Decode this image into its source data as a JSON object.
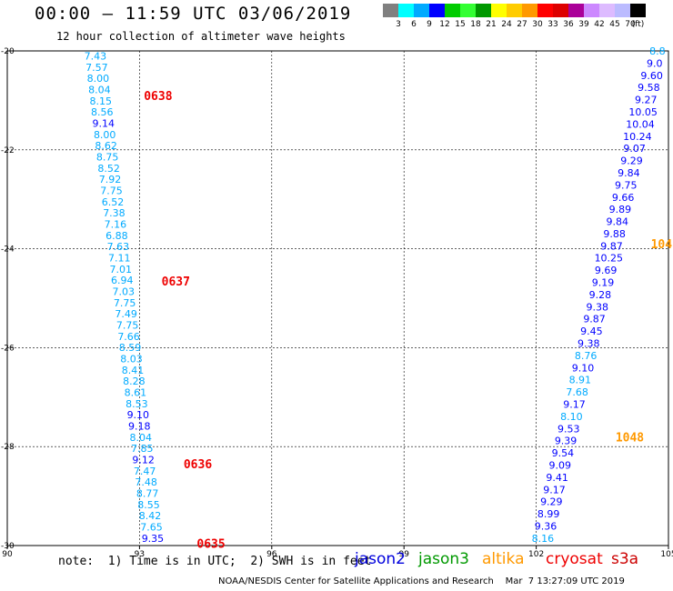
{
  "header": {
    "title": "00:00 – 11:59 UTC 03/06/2019",
    "subtitle": "12 hour collection of altimeter wave heights"
  },
  "legend": {
    "colors": [
      "#808080",
      "#00ffff",
      "#00aaff",
      "#0000ff",
      "#00cc00",
      "#33ff33",
      "#009900",
      "#ffff00",
      "#ffcc00",
      "#ff9900",
      "#ff0000",
      "#dd0000",
      "#aa0099",
      "#cc88ff",
      "#ddbbff",
      "#bbbbff",
      "#000000"
    ],
    "labels": [
      "3",
      "6",
      "9",
      "12",
      "15",
      "18",
      "21",
      "24",
      "27",
      "30",
      "33",
      "36",
      "39",
      "42",
      "45",
      "70",
      "(ft)"
    ]
  },
  "footer": {
    "note": "note:  1) Time is in UTC;  2) SWH is in feet",
    "satellites": [
      {
        "name": "jason2",
        "color": "#0000dd"
      },
      {
        "name": "jason3",
        "color": "#009900"
      },
      {
        "name": "altika",
        "color": "#ff9900"
      },
      {
        "name": "cryosat",
        "color": "#ee0000"
      },
      {
        "name": "s3a",
        "color": "#cc0000"
      }
    ],
    "credit": "NOAA/NESDIS Center for Satellite Applications and Research    Mar  7 13:27:09 UTC 2019"
  },
  "chart_data": {
    "type": "scatter",
    "title": "00:00 – 11:59 UTC 03/06/2019",
    "subtitle": "12 hour collection of altimeter wave heights",
    "xlim": [
      90,
      105
    ],
    "ylim": [
      -30,
      -20
    ],
    "x_ticks": [
      "90",
      "93",
      "96",
      "99",
      "102",
      "105"
    ],
    "y_ticks": [
      "-20",
      "-22",
      "-24",
      "-26",
      "-28",
      "-30"
    ],
    "grid": true,
    "series": [
      {
        "name": "track-1",
        "x_start": 92.0,
        "x_end": 93.3,
        "y_start": -20.1,
        "y_end": -29.85,
        "values": [
          "7.43",
          "7.57",
          "8.00",
          "8.04",
          "8.15",
          "8.56",
          "9.14",
          "8.00",
          "8.62",
          "8.75",
          "8.52",
          "7.92",
          "7.75",
          "6.52",
          "7.38",
          "7.16",
          "6.88",
          "7.63",
          "7.11",
          "7.01",
          "6.94",
          "7.03",
          "7.75",
          "7.49",
          "7.75",
          "7.66",
          "8.59",
          "8.03",
          "8.41",
          "8.28",
          "8.61",
          "8.53",
          "9.10",
          "9.18",
          "8.04",
          "7.85",
          "9.12",
          "7.47",
          "7.48",
          "8.77",
          "8.55",
          "8.42",
          "7.65",
          "9.35"
        ],
        "colors": [
          "#00aaff",
          "#00aaff",
          "#00aaff",
          "#00aaff",
          "#00aaff",
          "#00aaff",
          "#0000ff",
          "#00aaff",
          "#00aaff",
          "#00aaff",
          "#00aaff",
          "#00aaff",
          "#00aaff",
          "#00aaff",
          "#00aaff",
          "#00aaff",
          "#00aaff",
          "#00aaff",
          "#00aaff",
          "#00aaff",
          "#00aaff",
          "#00aaff",
          "#00aaff",
          "#00aaff",
          "#00aaff",
          "#00aaff",
          "#00aaff",
          "#00aaff",
          "#00aaff",
          "#00aaff",
          "#00aaff",
          "#00aaff",
          "#0000ff",
          "#0000ff",
          "#00aaff",
          "#00aaff",
          "#0000ff",
          "#00aaff",
          "#00aaff",
          "#00aaff",
          "#00aaff",
          "#00aaff",
          "#00aaff",
          "#0000ff"
        ]
      },
      {
        "name": "track-2",
        "x_start": 104.75,
        "x_end": 102.15,
        "y_start": -20.0,
        "y_end": -29.85,
        "values": [
          "8.8",
          "9.0",
          "9.60",
          "9.58",
          "9.27",
          "10.05",
          "10.04",
          "10.24",
          "9.07",
          "9.29",
          "9.84",
          "9.75",
          "9.66",
          "9.89",
          "9.84",
          "9.88",
          "9.87",
          "10.25",
          "9.69",
          "9.19",
          "9.28",
          "9.38",
          "9.87",
          "9.45",
          "9.38",
          "8.76",
          "9.10",
          "8.91",
          "7.68",
          "9.17",
          "8.10",
          "9.53",
          "9.39",
          "9.54",
          "9.09",
          "9.41",
          "9.17",
          "9.29",
          "8.99",
          "9.36",
          "8.16"
        ],
        "colors": [
          "#00aaff",
          "#0000ff",
          "#0000ff",
          "#0000ff",
          "#0000ff",
          "#0000ff",
          "#0000ff",
          "#0000ff",
          "#0000ff",
          "#0000ff",
          "#0000ff",
          "#0000ff",
          "#0000ff",
          "#0000ff",
          "#0000ff",
          "#0000ff",
          "#0000ff",
          "#0000ff",
          "#0000ff",
          "#0000ff",
          "#0000ff",
          "#0000ff",
          "#0000ff",
          "#0000ff",
          "#0000ff",
          "#00aaff",
          "#0000ff",
          "#00aaff",
          "#00aaff",
          "#0000ff",
          "#00aaff",
          "#0000ff",
          "#0000ff",
          "#0000ff",
          "#0000ff",
          "#0000ff",
          "#0000ff",
          "#0000ff",
          "#0000ff",
          "#0000ff",
          "#00aaff"
        ]
      }
    ],
    "time_labels": [
      {
        "text": "0638",
        "x": 93.1,
        "y": -20.9,
        "color": "#ee0000"
      },
      {
        "text": "0637",
        "x": 93.5,
        "y": -24.65,
        "color": "#ee0000"
      },
      {
        "text": "0636",
        "x": 94.0,
        "y": -28.35,
        "color": "#ee0000"
      },
      {
        "text": "0635",
        "x": 94.3,
        "y": -29.95,
        "color": "#ee0000"
      },
      {
        "text": "104",
        "x": 104.6,
        "y": -23.9,
        "color": "#ff9900"
      },
      {
        "text": "1048",
        "x": 103.8,
        "y": -27.8,
        "color": "#ff9900"
      }
    ]
  }
}
